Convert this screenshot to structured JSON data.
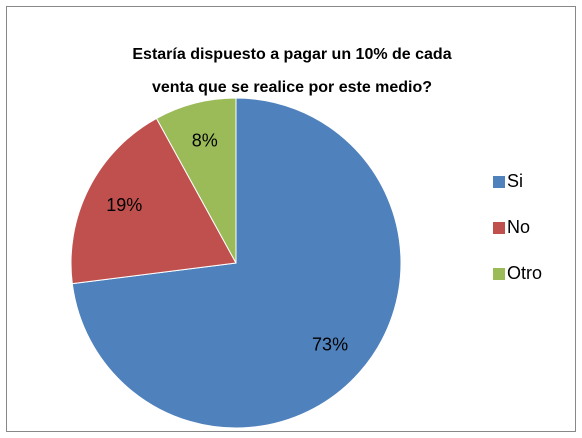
{
  "chart_data": {
    "type": "pie",
    "title": [
      "Estaría dispuesto a pagar un 10% de cada",
      "venta que se realice por este medio?"
    ],
    "categories": [
      "Si",
      "No",
      "Otro"
    ],
    "values": [
      73,
      19,
      8
    ],
    "value_labels": [
      "73%",
      "19%",
      "8%"
    ],
    "colors": [
      "#4f81bd",
      "#c0504d",
      "#9bbb59"
    ],
    "legend": "right"
  }
}
